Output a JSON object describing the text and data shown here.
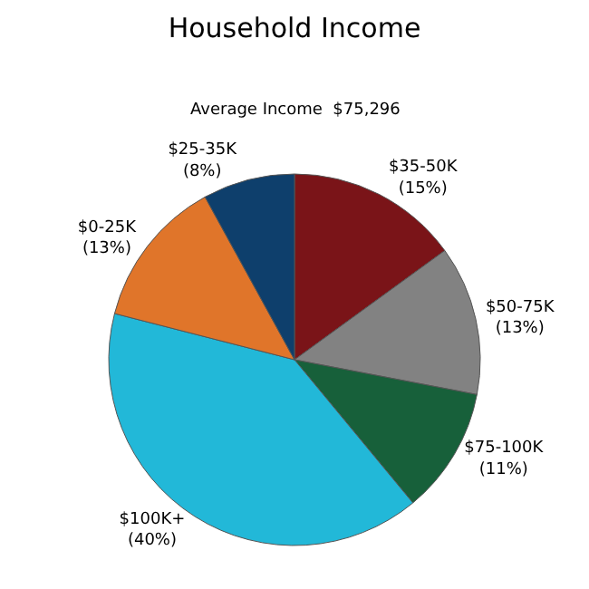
{
  "chart_data": {
    "type": "pie",
    "title": "Household Income",
    "subtitle": "Average Income  $75,296",
    "categories": [
      "$35-50K",
      "$50-75K",
      "$75-100K",
      "$100K+",
      "$0-25K",
      "$25-35K"
    ],
    "values": [
      15,
      13,
      11,
      40,
      13,
      8
    ],
    "value_labels": [
      "(15%)",
      "(13%)",
      "(11%)",
      "(40%)",
      "(13%)",
      "(8%)"
    ],
    "colors": [
      "#7a1418",
      "#828282",
      "#17603a",
      "#22b8d8",
      "#e0752a",
      "#0e3f6c"
    ],
    "legend": false
  }
}
